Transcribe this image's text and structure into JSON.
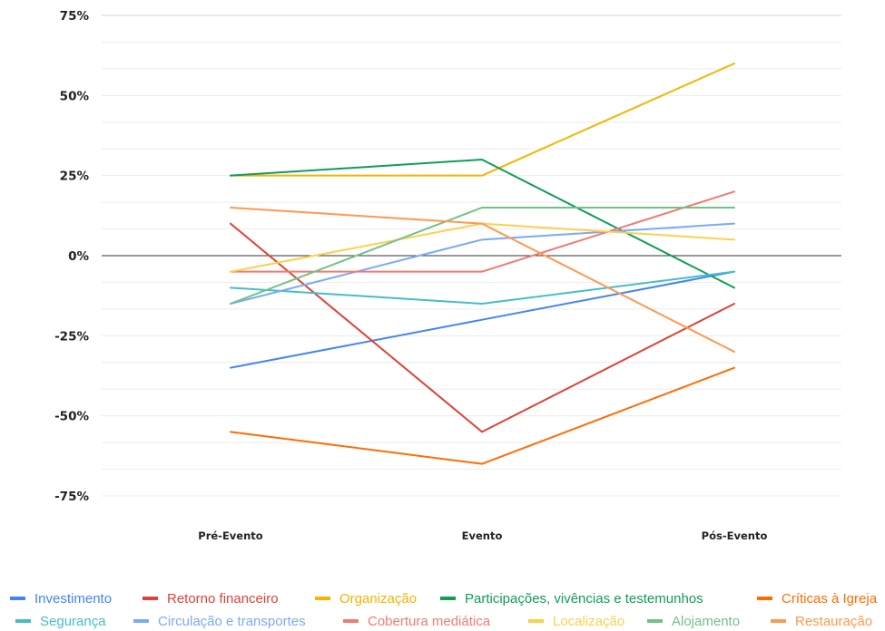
{
  "chart_data": {
    "type": "line",
    "title": "",
    "xlabel": "",
    "ylabel": "",
    "categories": [
      "Pré-Evento",
      "Evento",
      "Pós-Evento"
    ],
    "ylim": [
      -75,
      75
    ],
    "yticks": [
      {
        "value": 75,
        "label": "75%"
      },
      {
        "value": 50,
        "label": "50%"
      },
      {
        "value": 25,
        "label": "25%"
      },
      {
        "value": 0,
        "label": "0%"
      },
      {
        "value": -25,
        "label": "-25%"
      },
      {
        "value": -50,
        "label": "-50%"
      },
      {
        "value": -75,
        "label": "-75%"
      }
    ],
    "minor_gridlines_every": 8.333,
    "grid": true,
    "legend_position": "bottom",
    "series": [
      {
        "name": "Investimento",
        "color": "#4285F4",
        "values": [
          -35,
          -20,
          -5
        ]
      },
      {
        "name": "Retorno financeiro",
        "color": "#DB4437",
        "values": [
          10,
          -55,
          -15
        ]
      },
      {
        "name": "Organização",
        "color": "#F4B400",
        "values": [
          25,
          25,
          60
        ]
      },
      {
        "name": "Participações, vivências e testemunhos",
        "color": "#0F9D58",
        "values": [
          25,
          30,
          -10
        ]
      },
      {
        "name": "Críticas à Igreja",
        "color": "#FF6D01",
        "values": [
          -55,
          -65,
          -35
        ]
      },
      {
        "name": "Segurança",
        "color": "#46BDC6",
        "values": [
          -10,
          -15,
          -5
        ]
      },
      {
        "name": "Circulação e transportes",
        "color": "#7BAAF7",
        "values": [
          -15,
          5,
          10
        ]
      },
      {
        "name": "Cobertura mediática",
        "color": "#F07B72",
        "values": [
          -5,
          -5,
          20
        ]
      },
      {
        "name": "Localização",
        "color": "#FCD04F",
        "values": [
          -5,
          10,
          5
        ]
      },
      {
        "name": "Alojamento",
        "color": "#71C287",
        "values": [
          -15,
          15,
          15
        ]
      },
      {
        "name": "Restauração",
        "color": "#FF994D",
        "values": [
          15,
          10,
          -30
        ]
      }
    ]
  }
}
